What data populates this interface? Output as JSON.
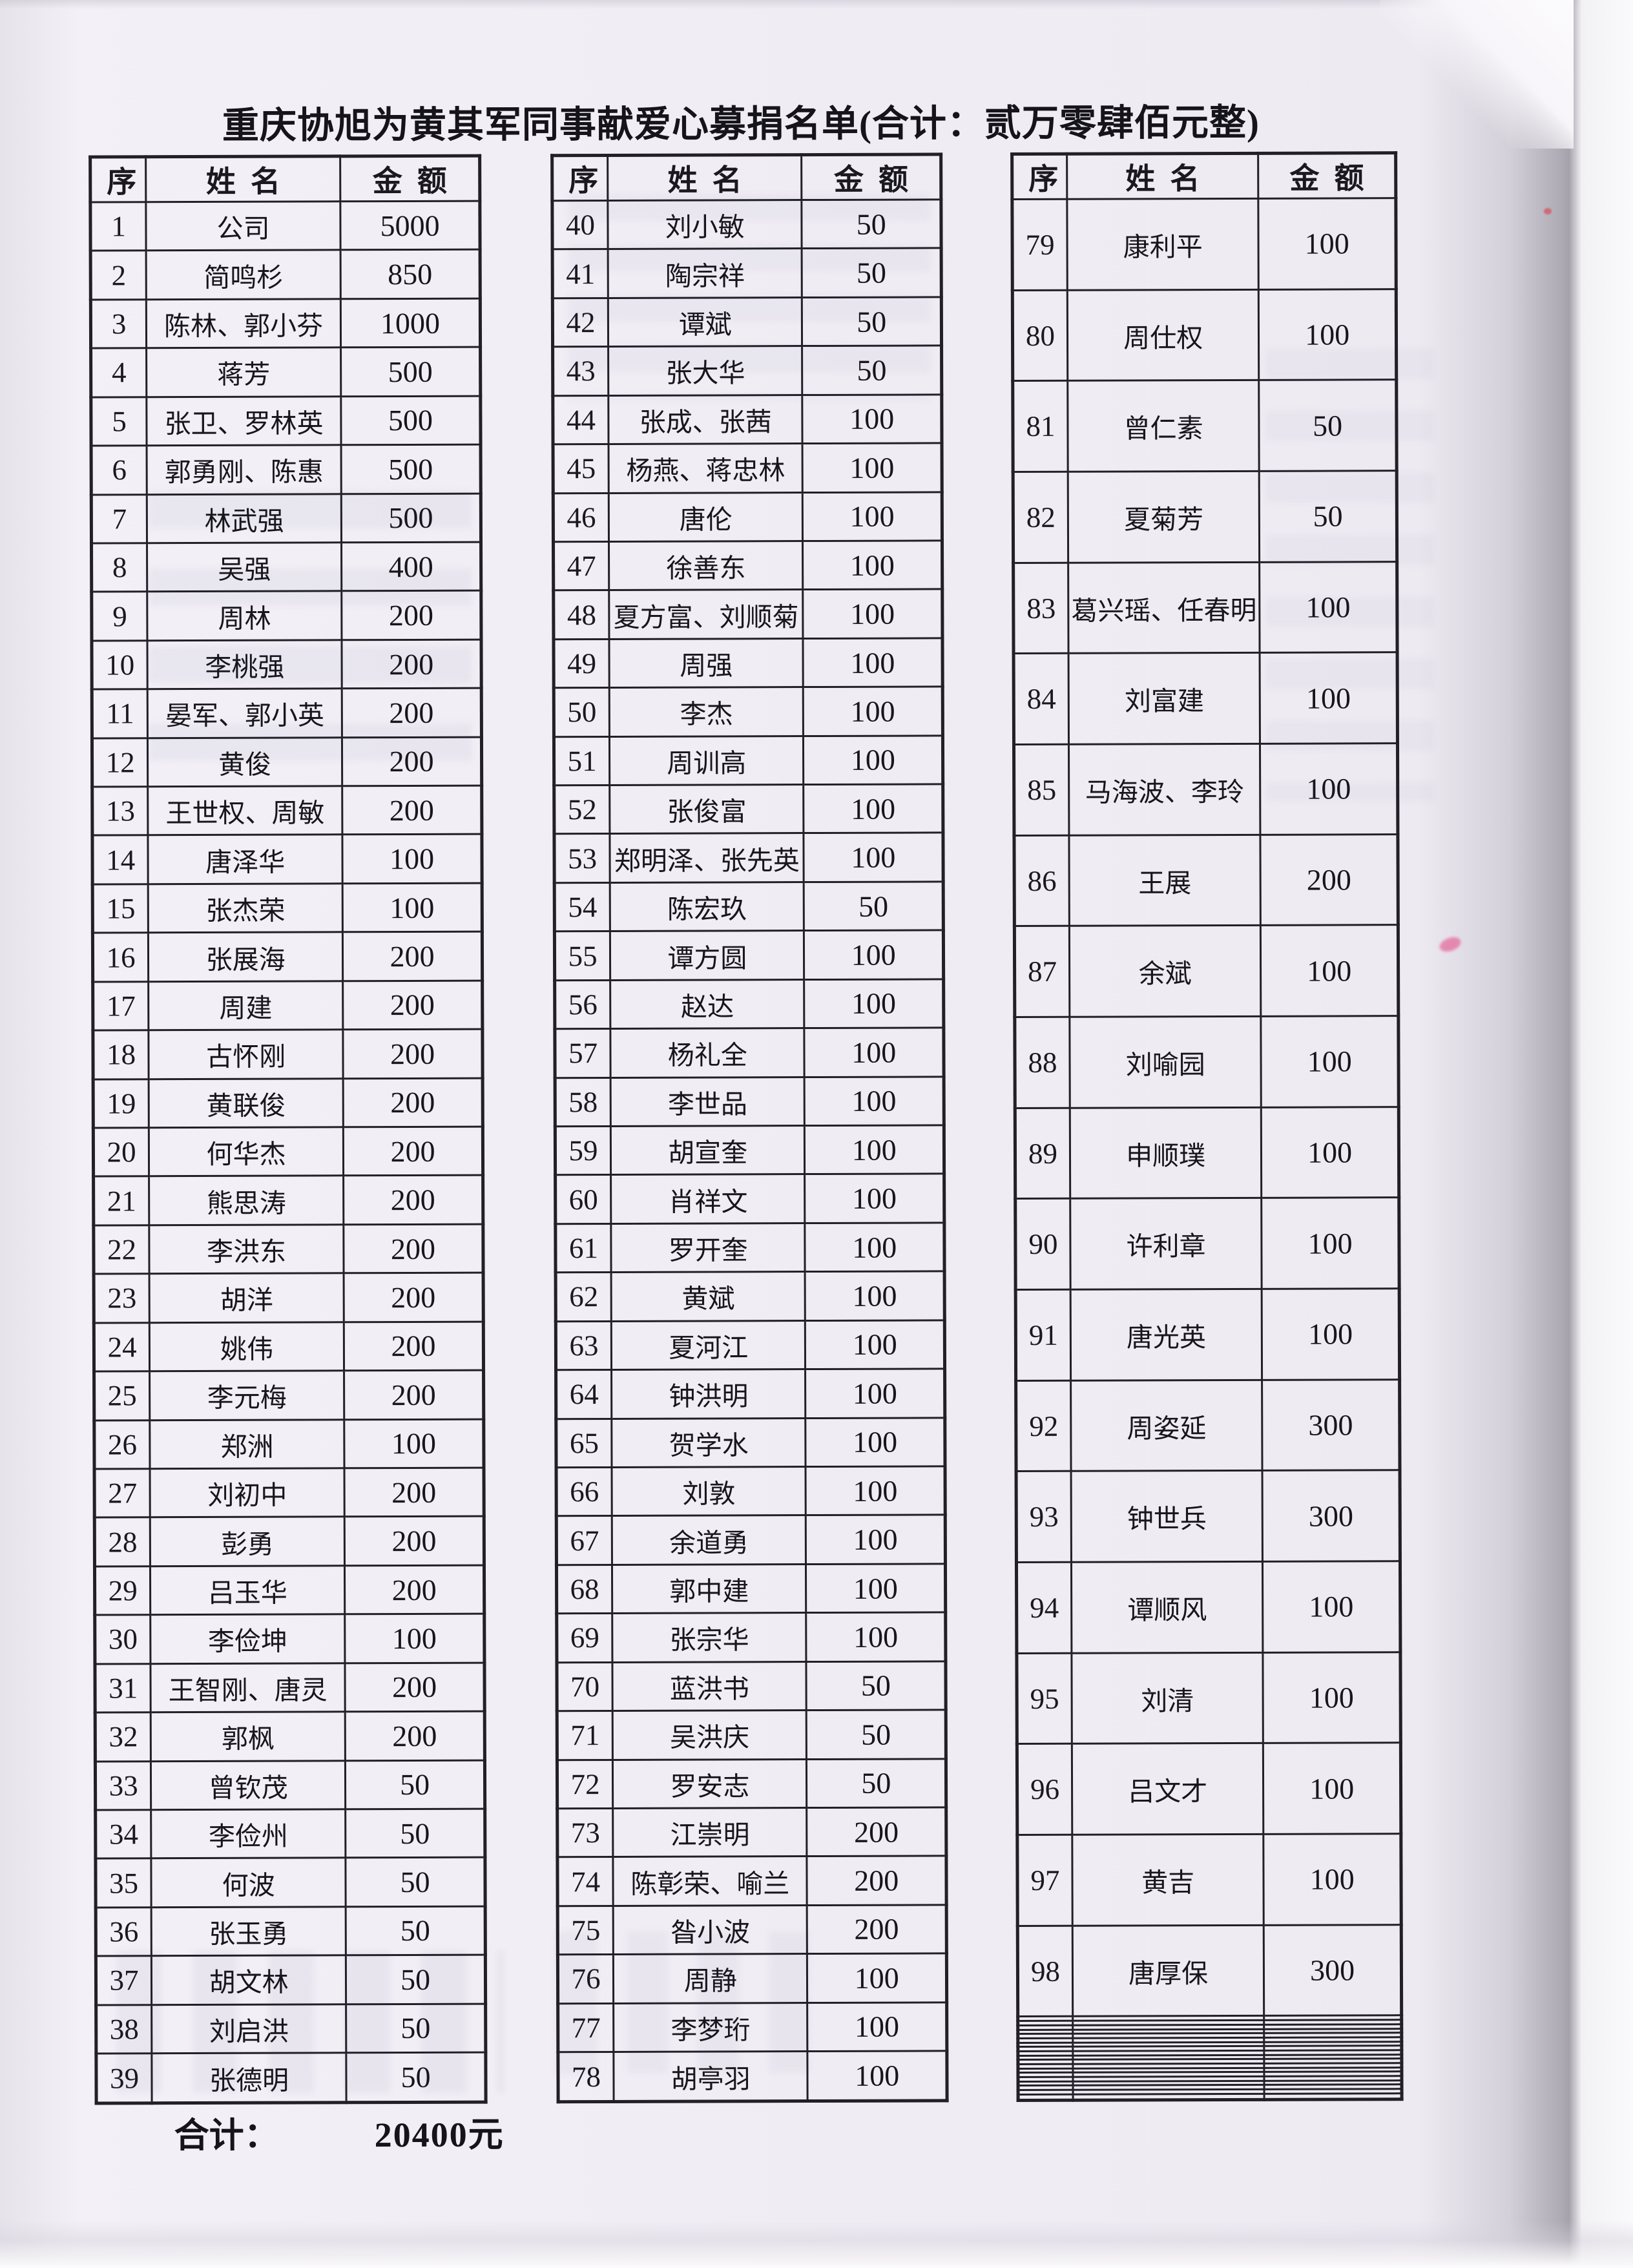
{
  "title": "重庆协旭为黄其军同事献爱心募捐名单(合计：贰万零肆佰元整)",
  "header": {
    "seq": "序",
    "name": "姓名",
    "amount": "金额"
  },
  "footer": {
    "total_label": "合计：",
    "total_value": "20400元"
  },
  "tables": [
    {
      "rows": [
        [
          "1",
          "公司",
          "5000"
        ],
        [
          "2",
          "简鸣杉",
          "850"
        ],
        [
          "3",
          "陈林、郭小芬",
          "1000"
        ],
        [
          "4",
          "蒋芳",
          "500"
        ],
        [
          "5",
          "张卫、罗林英",
          "500"
        ],
        [
          "6",
          "郭勇刚、陈惠",
          "500"
        ],
        [
          "7",
          "林武强",
          "500"
        ],
        [
          "8",
          "吴强",
          "400"
        ],
        [
          "9",
          "周林",
          "200"
        ],
        [
          "10",
          "李桃强",
          "200"
        ],
        [
          "11",
          "晏军、郭小英",
          "200"
        ],
        [
          "12",
          "黄俊",
          "200"
        ],
        [
          "13",
          "王世权、周敏",
          "200"
        ],
        [
          "14",
          "唐泽华",
          "100"
        ],
        [
          "15",
          "张杰荣",
          "100"
        ],
        [
          "16",
          "张展海",
          "200"
        ],
        [
          "17",
          "周建",
          "200"
        ],
        [
          "18",
          "古怀刚",
          "200"
        ],
        [
          "19",
          "黄联俊",
          "200"
        ],
        [
          "20",
          "何华杰",
          "200"
        ],
        [
          "21",
          "熊思涛",
          "200"
        ],
        [
          "22",
          "李洪东",
          "200"
        ],
        [
          "23",
          "胡洋",
          "200"
        ],
        [
          "24",
          "姚伟",
          "200"
        ],
        [
          "25",
          "李元梅",
          "200"
        ],
        [
          "26",
          "郑洲",
          "100"
        ],
        [
          "27",
          "刘初中",
          "200"
        ],
        [
          "28",
          "彭勇",
          "200"
        ],
        [
          "29",
          "吕玉华",
          "200"
        ],
        [
          "30",
          "李俭坤",
          "100"
        ],
        [
          "31",
          "王智刚、唐灵",
          "200"
        ],
        [
          "32",
          "郭枫",
          "200"
        ],
        [
          "33",
          "曾钦茂",
          "50"
        ],
        [
          "34",
          "李俭州",
          "50"
        ],
        [
          "35",
          "何波",
          "50"
        ],
        [
          "36",
          "张玉勇",
          "50"
        ],
        [
          "37",
          "胡文林",
          "50"
        ],
        [
          "38",
          "刘启洪",
          "50"
        ],
        [
          "39",
          "张德明",
          "50"
        ]
      ]
    },
    {
      "rows": [
        [
          "40",
          "刘小敏",
          "50"
        ],
        [
          "41",
          "陶宗祥",
          "50"
        ],
        [
          "42",
          "谭斌",
          "50"
        ],
        [
          "43",
          "张大华",
          "50"
        ],
        [
          "44",
          "张成、张茜",
          "100"
        ],
        [
          "45",
          "杨燕、蒋忠林",
          "100"
        ],
        [
          "46",
          "唐伦",
          "100"
        ],
        [
          "47",
          "徐善东",
          "100"
        ],
        [
          "48",
          "夏方富、刘顺菊",
          "100"
        ],
        [
          "49",
          "周强",
          "100"
        ],
        [
          "50",
          "李杰",
          "100"
        ],
        [
          "51",
          "周训高",
          "100"
        ],
        [
          "52",
          "张俊富",
          "100"
        ],
        [
          "53",
          "郑明泽、张先英",
          "100"
        ],
        [
          "54",
          "陈宏玖",
          "50"
        ],
        [
          "55",
          "谭方圆",
          "100"
        ],
        [
          "56",
          "赵达",
          "100"
        ],
        [
          "57",
          "杨礼全",
          "100"
        ],
        [
          "58",
          "李世品",
          "100"
        ],
        [
          "59",
          "胡宣奎",
          "100"
        ],
        [
          "60",
          "肖祥文",
          "100"
        ],
        [
          "61",
          "罗开奎",
          "100"
        ],
        [
          "62",
          "黄斌",
          "100"
        ],
        [
          "63",
          "夏河江",
          "100"
        ],
        [
          "64",
          "钟洪明",
          "100"
        ],
        [
          "65",
          "贺学水",
          "100"
        ],
        [
          "66",
          "刘敦",
          "100"
        ],
        [
          "67",
          "余道勇",
          "100"
        ],
        [
          "68",
          "郭中建",
          "100"
        ],
        [
          "69",
          "张宗华",
          "100"
        ],
        [
          "70",
          "蓝洪书",
          "50"
        ],
        [
          "71",
          "吴洪庆",
          "50"
        ],
        [
          "72",
          "罗安志",
          "50"
        ],
        [
          "73",
          "江崇明",
          "200"
        ],
        [
          "74",
          "陈彰荣、喻兰",
          "200"
        ],
        [
          "75",
          "昝小波",
          "200"
        ],
        [
          "76",
          "周静",
          "100"
        ],
        [
          "77",
          "李梦珩",
          "100"
        ],
        [
          "78",
          "胡亭羽",
          "100"
        ]
      ]
    },
    {
      "rows": [
        [
          "79",
          "康利平",
          "100"
        ],
        [
          "80",
          "周仕权",
          "100"
        ],
        [
          "81",
          "曾仁素",
          "50"
        ],
        [
          "82",
          "夏菊芳",
          "50"
        ],
        [
          "83",
          "葛兴瑶、任春明",
          "100"
        ],
        [
          "84",
          "刘富建",
          "100"
        ],
        [
          "85",
          "马海波、李玲",
          "100"
        ],
        [
          "86",
          "王展",
          "200"
        ],
        [
          "87",
          "余斌",
          "100"
        ],
        [
          "88",
          "刘喻园",
          "100"
        ],
        [
          "89",
          "申顺璞",
          "100"
        ],
        [
          "90",
          "许利章",
          "100"
        ],
        [
          "91",
          "唐光英",
          "100"
        ],
        [
          "92",
          "周姿延",
          "300"
        ],
        [
          "93",
          "钟世兵",
          "300"
        ],
        [
          "94",
          "谭顺风",
          "100"
        ],
        [
          "95",
          "刘清",
          "100"
        ],
        [
          "96",
          "吕文才",
          "100"
        ],
        [
          "97",
          "黄吉",
          "100"
        ],
        [
          "98",
          "唐厚保",
          "300"
        ],
        [
          "",
          "",
          ""
        ],
        [
          "",
          "",
          ""
        ],
        [
          "",
          "",
          ""
        ],
        [
          "",
          "",
          ""
        ],
        [
          "",
          "",
          ""
        ],
        [
          "",
          "",
          ""
        ],
        [
          "",
          "",
          ""
        ],
        [
          "",
          "",
          ""
        ],
        [
          "",
          "",
          ""
        ],
        [
          "",
          "",
          ""
        ],
        [
          "",
          "",
          ""
        ],
        [
          "",
          "",
          ""
        ],
        [
          "",
          "",
          ""
        ],
        [
          "",
          "",
          ""
        ],
        [
          "",
          "",
          ""
        ],
        [
          "",
          "",
          ""
        ],
        [
          "",
          "",
          ""
        ],
        [
          "",
          "",
          ""
        ],
        [
          "",
          "",
          ""
        ]
      ]
    }
  ]
}
